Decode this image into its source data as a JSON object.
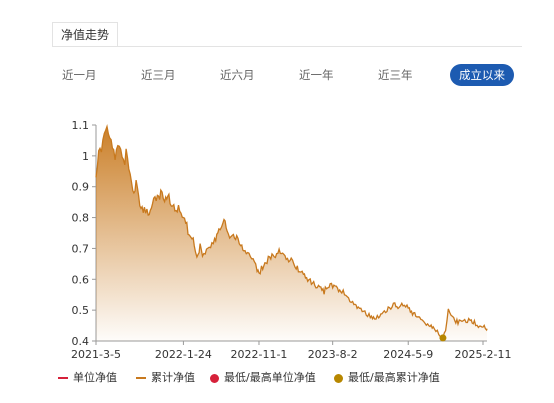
{
  "header": {
    "title": "净值走势"
  },
  "range_tabs": [
    "近一月",
    "近三月",
    "近六月",
    "近一年",
    "近三年",
    "成立以来"
  ],
  "active_tab": "成立以来",
  "legend": [
    {
      "label": "单位净值",
      "kind": "line",
      "color": "#d6213a"
    },
    {
      "label": "累计净值",
      "kind": "line",
      "color": "#c8791e"
    },
    {
      "label": "最低/最高单位净值",
      "kind": "dot",
      "color": "#d6213a"
    },
    {
      "label": "最低/最高累计净值",
      "kind": "dot",
      "color": "#b78700"
    }
  ],
  "colors": {
    "accent": "#1d5bb1",
    "series": "#c8791e",
    "fill_top": "#c8791e"
  },
  "chart_data": {
    "type": "area",
    "title": "",
    "xlabel": "",
    "ylabel": "",
    "ylim": [
      0.4,
      1.1
    ],
    "yticks": [
      "1.1",
      "1",
      "0.9",
      "0.8",
      "0.7",
      "0.6",
      "0.5",
      "0.4"
    ],
    "ytick_values": [
      1.1,
      1.0,
      0.9,
      0.8,
      0.7,
      0.6,
      0.5,
      0.4
    ],
    "xticks": [
      "2021-3-5",
      "2022-1-24",
      "2022-11-1",
      "2023-8-2",
      "2024-5-9",
      "2025-2-11"
    ],
    "xtick_dates": [
      "2021-03-05",
      "2022-01-24",
      "2022-11-01",
      "2023-08-02",
      "2024-05-09",
      "2025-02-11"
    ],
    "grid": false,
    "series": [
      {
        "name": "累计净值",
        "points": [
          [
            "2021-03-05",
            0.95
          ],
          [
            "2021-03-15",
            1.0
          ],
          [
            "2021-03-25",
            1.03
          ],
          [
            "2021-04-05",
            1.07
          ],
          [
            "2021-04-15",
            1.1
          ],
          [
            "2021-04-25",
            1.06
          ],
          [
            "2021-05-05",
            1.02
          ],
          [
            "2021-05-15",
            1.0
          ],
          [
            "2021-05-25",
            1.04
          ],
          [
            "2021-06-05",
            1.02
          ],
          [
            "2021-06-15",
            0.97
          ],
          [
            "2021-06-25",
            1.01
          ],
          [
            "2021-07-05",
            0.97
          ],
          [
            "2021-07-20",
            0.87
          ],
          [
            "2021-08-01",
            0.91
          ],
          [
            "2021-08-15",
            0.84
          ],
          [
            "2021-09-01",
            0.82
          ],
          [
            "2021-09-15",
            0.81
          ],
          [
            "2021-10-01",
            0.84
          ],
          [
            "2021-10-15",
            0.86
          ],
          [
            "2021-11-01",
            0.88
          ],
          [
            "2021-11-15",
            0.85
          ],
          [
            "2021-12-01",
            0.87
          ],
          [
            "2021-12-15",
            0.84
          ],
          [
            "2022-01-01",
            0.83
          ],
          [
            "2022-01-15",
            0.82
          ],
          [
            "2022-01-24",
            0.8
          ],
          [
            "2022-02-10",
            0.76
          ],
          [
            "2022-02-25",
            0.74
          ],
          [
            "2022-03-10",
            0.69
          ],
          [
            "2022-03-20",
            0.67
          ],
          [
            "2022-03-27",
            0.71
          ],
          [
            "2022-04-05",
            0.68
          ],
          [
            "2022-04-20",
            0.7
          ],
          [
            "2022-05-05",
            0.71
          ],
          [
            "2022-05-20",
            0.73
          ],
          [
            "2022-06-05",
            0.75
          ],
          [
            "2022-06-20",
            0.77
          ],
          [
            "2022-06-28",
            0.79
          ],
          [
            "2022-07-10",
            0.74
          ],
          [
            "2022-07-25",
            0.74
          ],
          [
            "2022-08-10",
            0.73
          ],
          [
            "2022-08-25",
            0.71
          ],
          [
            "2022-09-10",
            0.7
          ],
          [
            "2022-09-25",
            0.68
          ],
          [
            "2022-10-10",
            0.66
          ],
          [
            "2022-10-25",
            0.63
          ],
          [
            "2022-11-01",
            0.62
          ],
          [
            "2022-11-15",
            0.64
          ],
          [
            "2022-12-01",
            0.66
          ],
          [
            "2022-12-15",
            0.67
          ],
          [
            "2023-01-01",
            0.68
          ],
          [
            "2023-01-15",
            0.69
          ],
          [
            "2023-02-01",
            0.68
          ],
          [
            "2023-02-15",
            0.67
          ],
          [
            "2023-03-01",
            0.66
          ],
          [
            "2023-03-15",
            0.64
          ],
          [
            "2023-04-01",
            0.63
          ],
          [
            "2023-04-15",
            0.62
          ],
          [
            "2023-05-01",
            0.6
          ],
          [
            "2023-05-15",
            0.59
          ],
          [
            "2023-06-01",
            0.58
          ],
          [
            "2023-06-15",
            0.57
          ],
          [
            "2023-07-01",
            0.56
          ],
          [
            "2023-07-15",
            0.58
          ],
          [
            "2023-08-02",
            0.58
          ],
          [
            "2023-08-20",
            0.57
          ],
          [
            "2023-09-05",
            0.56
          ],
          [
            "2023-09-20",
            0.55
          ],
          [
            "2023-10-05",
            0.53
          ],
          [
            "2023-10-20",
            0.52
          ],
          [
            "2023-11-05",
            0.51
          ],
          [
            "2023-11-20",
            0.5
          ],
          [
            "2023-12-05",
            0.49
          ],
          [
            "2023-12-20",
            0.48
          ],
          [
            "2024-01-05",
            0.47
          ],
          [
            "2024-01-20",
            0.48
          ],
          [
            "2024-02-05",
            0.49
          ],
          [
            "2024-02-20",
            0.5
          ],
          [
            "2024-03-05",
            0.51
          ],
          [
            "2024-03-20",
            0.52
          ],
          [
            "2024-04-05",
            0.51
          ],
          [
            "2024-04-20",
            0.52
          ],
          [
            "2024-05-09",
            0.51
          ],
          [
            "2024-05-25",
            0.49
          ],
          [
            "2024-06-10",
            0.48
          ],
          [
            "2024-06-25",
            0.47
          ],
          [
            "2024-07-10",
            0.46
          ],
          [
            "2024-07-25",
            0.45
          ],
          [
            "2024-08-10",
            0.44
          ],
          [
            "2024-08-25",
            0.43
          ],
          [
            "2024-09-05",
            0.42
          ],
          [
            "2024-09-15",
            0.41
          ],
          [
            "2024-09-25",
            0.43
          ],
          [
            "2024-10-05",
            0.5
          ],
          [
            "2024-10-15",
            0.48
          ],
          [
            "2024-10-25",
            0.47
          ],
          [
            "2024-11-10",
            0.46
          ],
          [
            "2024-11-25",
            0.47
          ],
          [
            "2024-12-10",
            0.46
          ],
          [
            "2024-12-25",
            0.47
          ],
          [
            "2025-01-10",
            0.46
          ],
          [
            "2025-01-25",
            0.45
          ],
          [
            "2025-02-11",
            0.45
          ],
          [
            "2025-02-20",
            0.44
          ],
          [
            "2025-03-01",
            0.44
          ]
        ]
      }
    ],
    "markers": [
      {
        "series": "累计净值",
        "label": "最低累计净值",
        "x": "2024-09-15",
        "y": 0.41
      }
    ]
  }
}
